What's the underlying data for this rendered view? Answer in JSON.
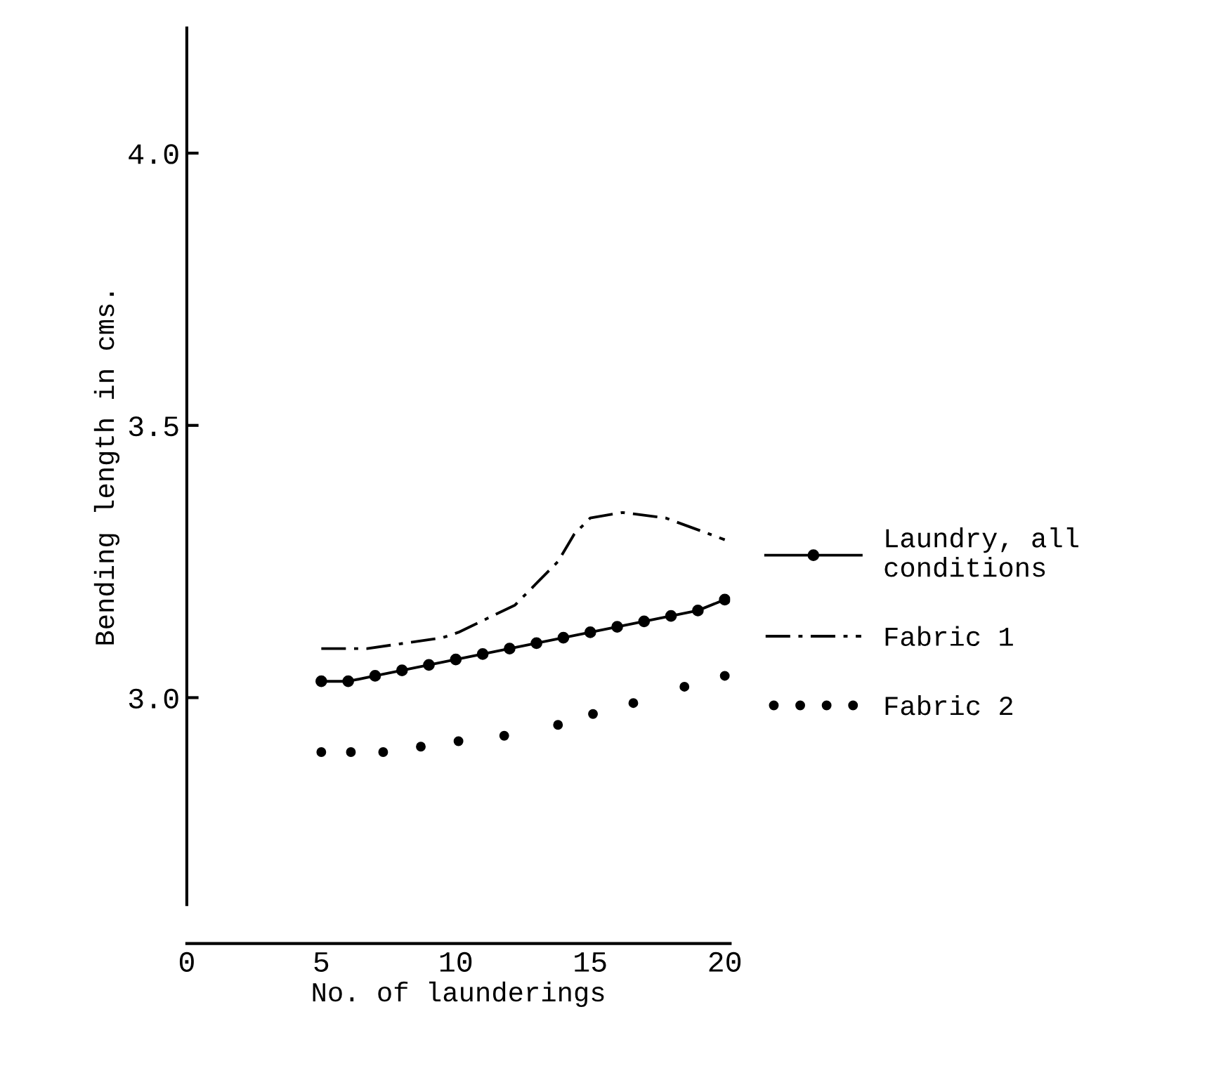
{
  "chart_data": {
    "type": "line",
    "xlabel": "No. of launderings",
    "ylabel": "Bending length in cms.",
    "xlim": [
      0,
      20.2
    ],
    "ylim": [
      2.62,
      4.23
    ],
    "xticks": [
      0,
      5,
      10,
      15,
      20
    ],
    "yticks": [
      {
        "value": 3,
        "label": "3.0"
      },
      {
        "value": 3.5,
        "label": "3.5"
      },
      {
        "value": 4,
        "label": "4.0"
      }
    ],
    "grid": false,
    "legend": "right",
    "series": [
      {
        "name": "Laundry, all\nconditions",
        "color": "#000000",
        "marker": "circle",
        "line_style": "solid",
        "x": [
          5,
          6,
          7,
          8,
          9,
          10,
          11,
          12,
          13,
          14,
          15,
          16,
          17,
          18,
          19,
          20
        ],
        "values": [
          3.03,
          3.03,
          3.04,
          3.05,
          3.06,
          3.07,
          3.08,
          3.09,
          3.1,
          3.11,
          3.12,
          3.13,
          3.14,
          3.15,
          3.16,
          3.18
        ]
      },
      {
        "name": "Fabric 1",
        "color": "#000000",
        "marker": "none",
        "line_style": "dashed",
        "x": [
          5,
          6.7,
          9.5,
          10.1,
          12.2,
          13.8,
          14.4,
          15,
          16.2,
          17.8,
          20
        ],
        "values": [
          3.09,
          3.09,
          3.11,
          3.12,
          3.17,
          3.25,
          3.3,
          3.33,
          3.34,
          3.33,
          3.29
        ]
      },
      {
        "name": "Fabric 2",
        "color": "#000000",
        "type": "scatter",
        "marker": "circle",
        "x": [
          5,
          6.1,
          7.3,
          8.7,
          10.1,
          11.8,
          13.8,
          15.1,
          16.6,
          18.5,
          20
        ],
        "values": [
          2.9,
          2.9,
          2.9,
          2.91,
          2.92,
          2.93,
          2.95,
          2.97,
          2.99,
          3.02,
          3.04
        ]
      }
    ]
  }
}
